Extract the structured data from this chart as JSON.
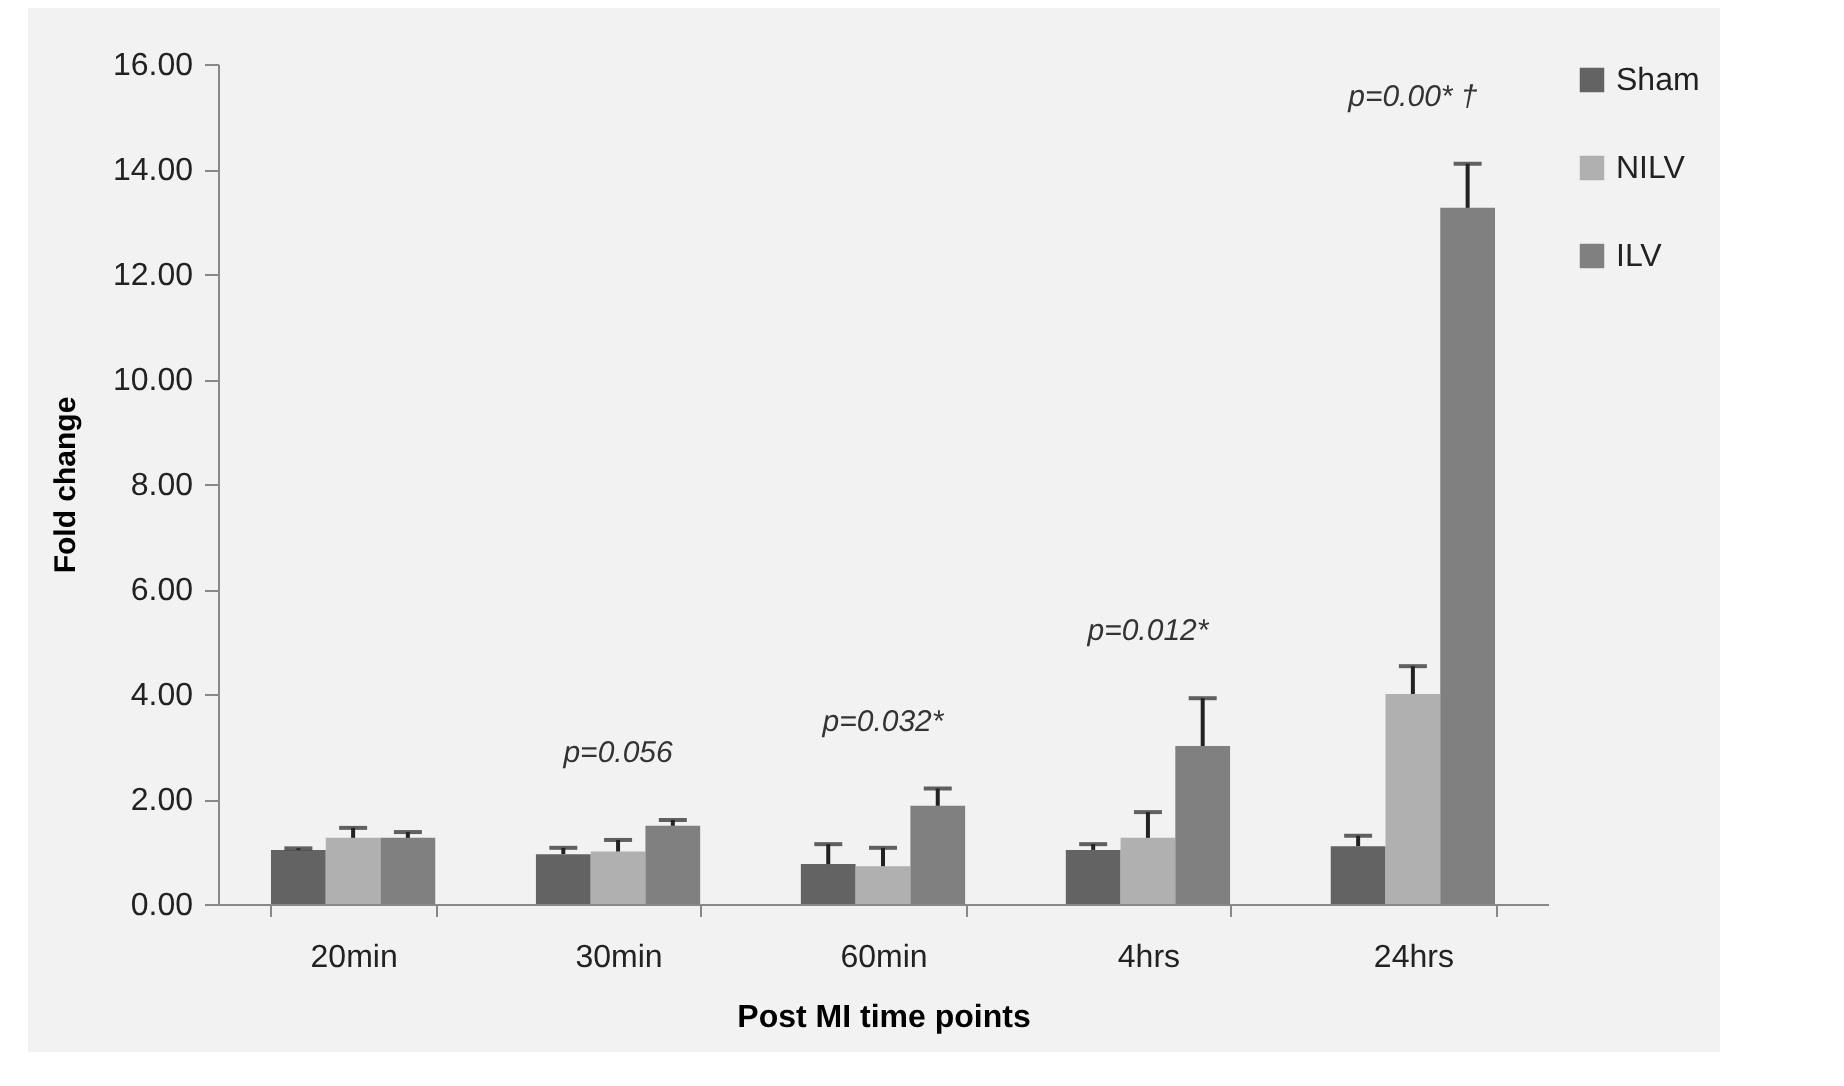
{
  "chart_data": {
    "type": "bar",
    "xlabel": "Post MI time points",
    "ylabel": "Fold change",
    "categories": [
      "20min",
      "30min",
      "60min",
      "4hrs",
      "24hrs"
    ],
    "series": [
      {
        "name": "Sham",
        "color": "#636363",
        "values": [
          1.03,
          0.95,
          0.76,
          1.03,
          1.1
        ],
        "errors": [
          [
            1.03,
            1.06
          ],
          [
            0.95,
            1.07
          ],
          [
            0.76,
            1.14
          ],
          [
            1.03,
            1.14
          ],
          [
            1.1,
            1.3
          ]
        ]
      },
      {
        "name": "NILV",
        "color": "#b0b0b0",
        "values": [
          1.26,
          1.0,
          0.72,
          1.26,
          4.0
        ],
        "errors": [
          [
            1.26,
            1.45
          ],
          [
            1.0,
            1.22
          ],
          [
            0.72,
            1.07
          ],
          [
            1.26,
            1.75
          ],
          [
            4.0,
            4.53
          ]
        ]
      },
      {
        "name": "ILV",
        "color": "#808080",
        "values": [
          1.26,
          1.49,
          1.87,
          3.01,
          13.26
        ],
        "errors": [
          [
            1.26,
            1.37
          ],
          [
            1.49,
            1.6
          ],
          [
            1.87,
            2.2
          ],
          [
            3.01,
            3.92
          ],
          [
            13.26,
            14.1
          ]
        ]
      }
    ],
    "ylim": [
      0,
      16
    ],
    "yticks": [
      {
        "value": 0,
        "label": "0.00"
      },
      {
        "value": 2,
        "label": "2.00"
      },
      {
        "value": 4,
        "label": "4.00"
      },
      {
        "value": 6,
        "label": "6.00"
      },
      {
        "value": 8,
        "label": "8.00"
      },
      {
        "value": 10,
        "label": "10.00"
      },
      {
        "value": 12,
        "label": "12.00"
      },
      {
        "value": 14,
        "label": "14.00"
      },
      {
        "value": 16,
        "label": "16.00"
      }
    ],
    "annotations": [
      "p=0.056",
      "p=0.032*",
      "p=0.012*",
      "p=0.00* †"
    ],
    "grid": false,
    "legend": "right"
  }
}
